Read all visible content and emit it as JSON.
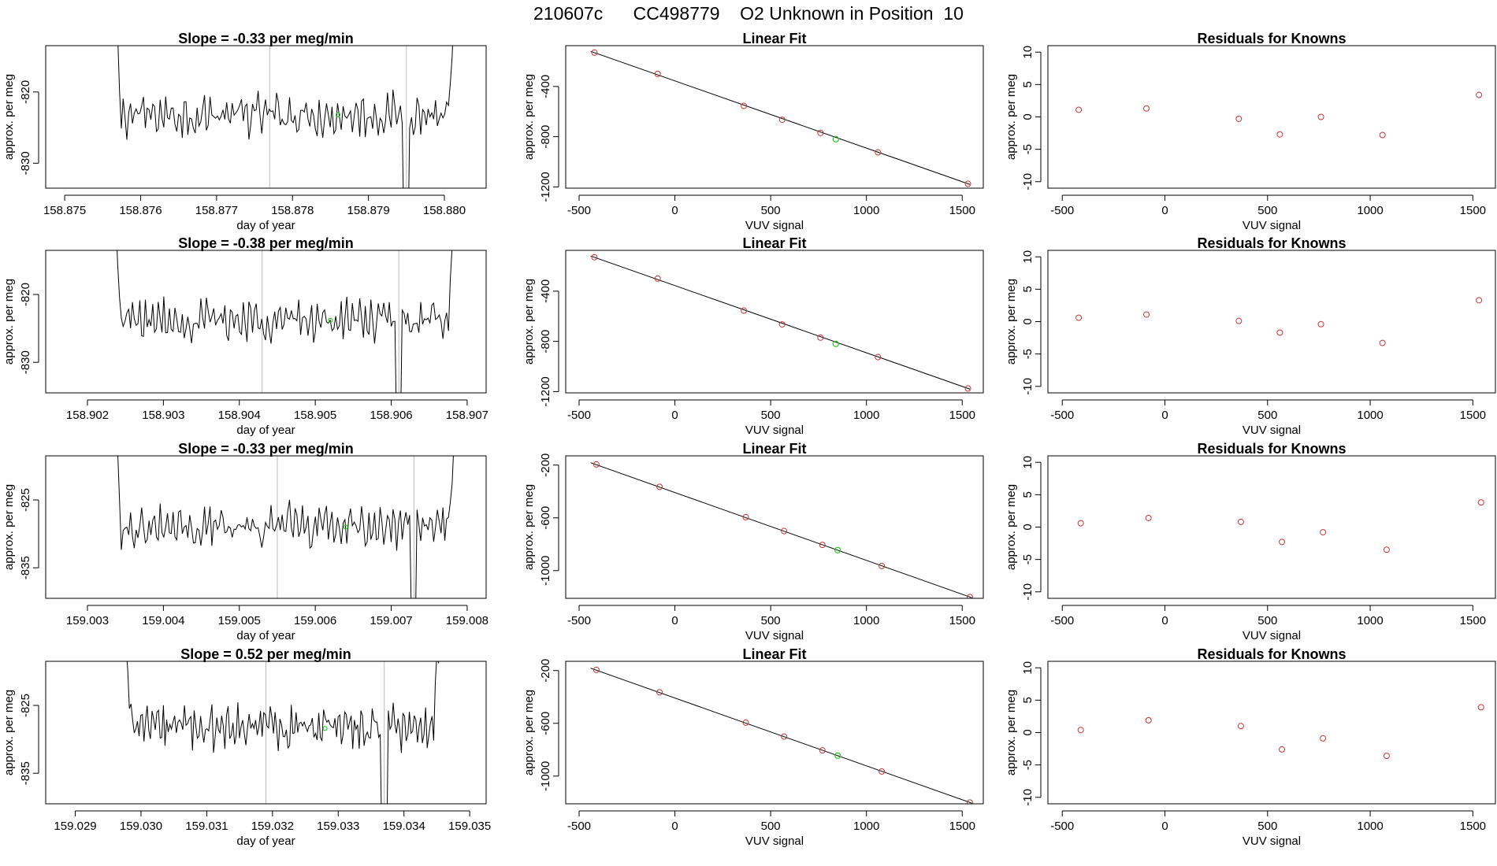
{
  "title": "210607c      CC498779    O2 Unknown in Position  10",
  "colors": {
    "line": "#000000",
    "known_point": "#cc3333",
    "unknown_point": "#22cc22",
    "frame": "#000000",
    "marker": "#bbbbbb"
  },
  "chart_data": [
    {
      "type": "line",
      "panel": "timeseries",
      "row": 0,
      "title": "Slope =  -0.33  per meg/min",
      "xlabel": "day of year",
      "ylabel": "approx. per meg",
      "xlim": [
        158.87475,
        158.88055
      ],
      "ylim": [
        -833.5,
        -813.5
      ],
      "xticks": [
        158.875,
        158.876,
        158.877,
        158.878,
        158.879,
        158.88
      ],
      "xtick_labels": [
        "158.875",
        "158.876",
        "158.877",
        "158.878",
        "158.879",
        "158.880"
      ],
      "yticks": [
        -820,
        -830
      ],
      "ytick_labels": [
        "-820",
        "-830"
      ],
      "x_start": 158.8756,
      "x_end": 158.8802,
      "n_points": 190,
      "level": -823.2,
      "noise": 2.8,
      "vlines": [
        158.8777,
        158.8795
      ],
      "unknown_point": {
        "x": 158.8786,
        "y": -823.2
      }
    },
    {
      "type": "scatter",
      "panel": "linear_fit",
      "row": 0,
      "title": "Linear Fit",
      "xlabel": "VUV signal",
      "ylabel": "approx. per meg",
      "xlim": [
        -570,
        1610
      ],
      "ylim": [
        -1210,
        -75
      ],
      "xticks": [
        -500,
        0,
        500,
        1000,
        1500
      ],
      "xtick_labels": [
        "-500",
        "0",
        "500",
        "1000",
        "1500"
      ],
      "yticks": [
        -400,
        -800,
        -1200
      ],
      "ytick_labels": [
        "-400",
        "-800",
        "-1200"
      ],
      "knowns": {
        "x": [
          -420,
          -90,
          360,
          560,
          760,
          1060,
          1530
        ],
        "y": [
          -130,
          -300,
          -555,
          -665,
          -770,
          -925,
          -1175
        ]
      },
      "unknown": {
        "x": 840,
        "y": -820
      },
      "fit_line": {
        "x": [
          -440,
          1540
        ],
        "y": [
          -120,
          -1180
        ]
      }
    },
    {
      "type": "scatter",
      "panel": "residuals",
      "row": 0,
      "title": "Residuals for Knowns",
      "xlabel": "VUV signal",
      "ylabel": "approx. per meg",
      "xlim": [
        -570,
        1610
      ],
      "ylim": [
        -11,
        11
      ],
      "xticks": [
        -500,
        0,
        500,
        1000,
        1500
      ],
      "xtick_labels": [
        "-500",
        "0",
        "500",
        "1000",
        "1500"
      ],
      "yticks": [
        10,
        5,
        0,
        -5,
        -10
      ],
      "ytick_labels": [
        "10",
        "5",
        "0",
        "-5",
        "-10"
      ],
      "x": [
        -420,
        -90,
        360,
        560,
        760,
        1060,
        1530
      ],
      "y": [
        1.1,
        1.3,
        -0.3,
        -2.7,
        0.0,
        -2.8,
        3.4
      ]
    },
    {
      "type": "line",
      "panel": "timeseries",
      "row": 1,
      "title": "Slope =  -0.38  per meg/min",
      "xlabel": "day of year",
      "ylabel": "approx. per meg",
      "xlim": [
        158.90145,
        158.90725
      ],
      "ylim": [
        -834.5,
        -813.5
      ],
      "xticks": [
        158.902,
        158.903,
        158.904,
        158.905,
        158.906,
        158.907
      ],
      "xtick_labels": [
        "158.902",
        "158.903",
        "158.904",
        "158.905",
        "158.906",
        "158.907"
      ],
      "yticks": [
        -820,
        -830
      ],
      "ytick_labels": [
        "-820",
        "-830"
      ],
      "x_start": 158.9023,
      "x_end": 158.9069,
      "n_points": 190,
      "level": -823.8,
      "noise": 2.8,
      "vlines": [
        158.9043,
        158.9061
      ],
      "unknown_point": {
        "x": 158.9052,
        "y": -823.8
      }
    },
    {
      "type": "scatter",
      "panel": "linear_fit",
      "row": 1,
      "title": "Linear Fit",
      "xlabel": "VUV signal",
      "ylabel": "approx. per meg",
      "xlim": [
        -570,
        1610
      ],
      "ylim": [
        -1210,
        -75
      ],
      "xticks": [
        -500,
        0,
        500,
        1000,
        1500
      ],
      "xtick_labels": [
        "-500",
        "0",
        "500",
        "1000",
        "1500"
      ],
      "yticks": [
        -400,
        -800,
        -1200
      ],
      "ytick_labels": [
        "-400",
        "-800",
        "-1200"
      ],
      "knowns": {
        "x": [
          -420,
          -90,
          360,
          560,
          760,
          1060,
          1530
        ],
        "y": [
          -130,
          -300,
          -555,
          -665,
          -770,
          -925,
          -1175
        ]
      },
      "unknown": {
        "x": 840,
        "y": -820
      },
      "fit_line": {
        "x": [
          -440,
          1540
        ],
        "y": [
          -120,
          -1180
        ]
      }
    },
    {
      "type": "scatter",
      "panel": "residuals",
      "row": 1,
      "title": "Residuals for Knowns",
      "xlabel": "VUV signal",
      "ylabel": "approx. per meg",
      "xlim": [
        -570,
        1610
      ],
      "ylim": [
        -11,
        11
      ],
      "xticks": [
        -500,
        0,
        500,
        1000,
        1500
      ],
      "xtick_labels": [
        "-500",
        "0",
        "500",
        "1000",
        "1500"
      ],
      "yticks": [
        10,
        5,
        0,
        -5,
        -10
      ],
      "ytick_labels": [
        "10",
        "5",
        "0",
        "-5",
        "-10"
      ],
      "x": [
        -420,
        -90,
        360,
        560,
        760,
        1060,
        1530
      ],
      "y": [
        0.6,
        1.1,
        0.1,
        -1.7,
        -0.4,
        -3.3,
        3.3
      ]
    },
    {
      "type": "line",
      "panel": "timeseries",
      "row": 2,
      "title": "Slope =  -0.33  per meg/min",
      "xlabel": "day of year",
      "ylabel": "approx. per meg",
      "xlim": [
        159.00245,
        159.00825
      ],
      "ylim": [
        -839.5,
        -818.5
      ],
      "xticks": [
        159.003,
        159.004,
        159.005,
        159.006,
        159.007,
        159.008
      ],
      "xtick_labels": [
        "159.003",
        "159.004",
        "159.005",
        "159.006",
        "159.007",
        "159.008"
      ],
      "yticks": [
        -825,
        -835
      ],
      "ytick_labels": [
        "-825",
        "-835"
      ],
      "x_start": 159.0033,
      "x_end": 159.0079,
      "n_points": 190,
      "level": -828.8,
      "noise": 3.0,
      "vlines": [
        159.0055,
        159.0073
      ],
      "unknown_point": {
        "x": 159.0064,
        "y": -829.0
      }
    },
    {
      "type": "scatter",
      "panel": "linear_fit",
      "row": 2,
      "title": "Linear Fit",
      "xlabel": "VUV signal",
      "ylabel": "approx. per meg",
      "xlim": [
        -570,
        1610
      ],
      "ylim": [
        -1210,
        -130
      ],
      "xticks": [
        -500,
        0,
        500,
        1000,
        1500
      ],
      "xtick_labels": [
        "-500",
        "0",
        "500",
        "1000",
        "1500"
      ],
      "yticks": [
        -200,
        -600,
        -1000
      ],
      "ytick_labels": [
        "-200",
        "-600",
        "-1000"
      ],
      "knowns": {
        "x": [
          -410,
          -80,
          370,
          570,
          770,
          1080,
          1540
        ],
        "y": [
          -195,
          -365,
          -595,
          -700,
          -805,
          -965,
          -1200
        ]
      },
      "unknown": {
        "x": 850,
        "y": -845
      },
      "fit_line": {
        "x": [
          -440,
          1550
        ],
        "y": [
          -182,
          -1205
        ]
      }
    },
    {
      "type": "scatter",
      "panel": "residuals",
      "row": 2,
      "title": "Residuals for Knowns",
      "xlabel": "VUV signal",
      "ylabel": "approx. per meg",
      "xlim": [
        -570,
        1610
      ],
      "ylim": [
        -11,
        11
      ],
      "xticks": [
        -500,
        0,
        500,
        1000,
        1500
      ],
      "xtick_labels": [
        "-500",
        "0",
        "500",
        "1000",
        "1500"
      ],
      "yticks": [
        10,
        5,
        0,
        -5,
        -10
      ],
      "ytick_labels": [
        "10",
        "5",
        "0",
        "-5",
        "-10"
      ],
      "x": [
        -410,
        -80,
        370,
        570,
        770,
        1080,
        1540
      ],
      "y": [
        0.6,
        1.4,
        0.8,
        -2.3,
        -0.8,
        -3.5,
        3.8
      ]
    },
    {
      "type": "line",
      "panel": "timeseries",
      "row": 3,
      "title": "Slope =  0.52  per meg/min",
      "xlabel": "day of year",
      "ylabel": "approx. per meg",
      "xlim": [
        159.02855,
        159.03525
      ],
      "ylim": [
        -839.5,
        -818.5
      ],
      "xticks": [
        159.029,
        159.03,
        159.031,
        159.032,
        159.033,
        159.034,
        159.035
      ],
      "xtick_labels": [
        "159.029",
        "159.030",
        "159.031",
        "159.032",
        "159.033",
        "159.034",
        "159.035"
      ],
      "yticks": [
        -825,
        -835
      ],
      "ytick_labels": [
        "-825",
        "-835"
      ],
      "x_start": 159.0297,
      "x_end": 159.0346,
      "n_points": 200,
      "level": -828.3,
      "noise": 3.0,
      "vlines": [
        159.0319,
        159.0337
      ],
      "unknown_point": {
        "x": 159.0328,
        "y": -828.4
      }
    },
    {
      "type": "scatter",
      "panel": "linear_fit",
      "row": 3,
      "title": "Linear Fit",
      "xlabel": "VUV signal",
      "ylabel": "approx. per meg",
      "xlim": [
        -570,
        1610
      ],
      "ylim": [
        -1210,
        -130
      ],
      "xticks": [
        -500,
        0,
        500,
        1000,
        1500
      ],
      "xtick_labels": [
        "-500",
        "0",
        "500",
        "1000",
        "1500"
      ],
      "yticks": [
        -200,
        -600,
        -1000
      ],
      "ytick_labels": [
        "-200",
        "-600",
        "-1000"
      ],
      "knowns": {
        "x": [
          -410,
          -80,
          370,
          570,
          770,
          1080,
          1540
        ],
        "y": [
          -195,
          -365,
          -595,
          -700,
          -805,
          -965,
          -1200
        ]
      },
      "unknown": {
        "x": 850,
        "y": -845
      },
      "fit_line": {
        "x": [
          -440,
          1550
        ],
        "y": [
          -182,
          -1205
        ]
      }
    },
    {
      "type": "scatter",
      "panel": "residuals",
      "row": 3,
      "title": "Residuals for Knowns",
      "xlabel": "VUV signal",
      "ylabel": "approx. per meg",
      "xlim": [
        -570,
        1610
      ],
      "ylim": [
        -11,
        11
      ],
      "xticks": [
        -500,
        0,
        500,
        1000,
        1500
      ],
      "xtick_labels": [
        "-500",
        "0",
        "500",
        "1000",
        "1500"
      ],
      "yticks": [
        10,
        5,
        0,
        -5,
        -10
      ],
      "ytick_labels": [
        "10",
        "5",
        "0",
        "-5",
        "-10"
      ],
      "x": [
        -410,
        -80,
        370,
        570,
        770,
        1080,
        1540
      ],
      "y": [
        0.4,
        1.9,
        1.0,
        -2.6,
        -0.9,
        -3.6,
        3.9
      ]
    }
  ]
}
